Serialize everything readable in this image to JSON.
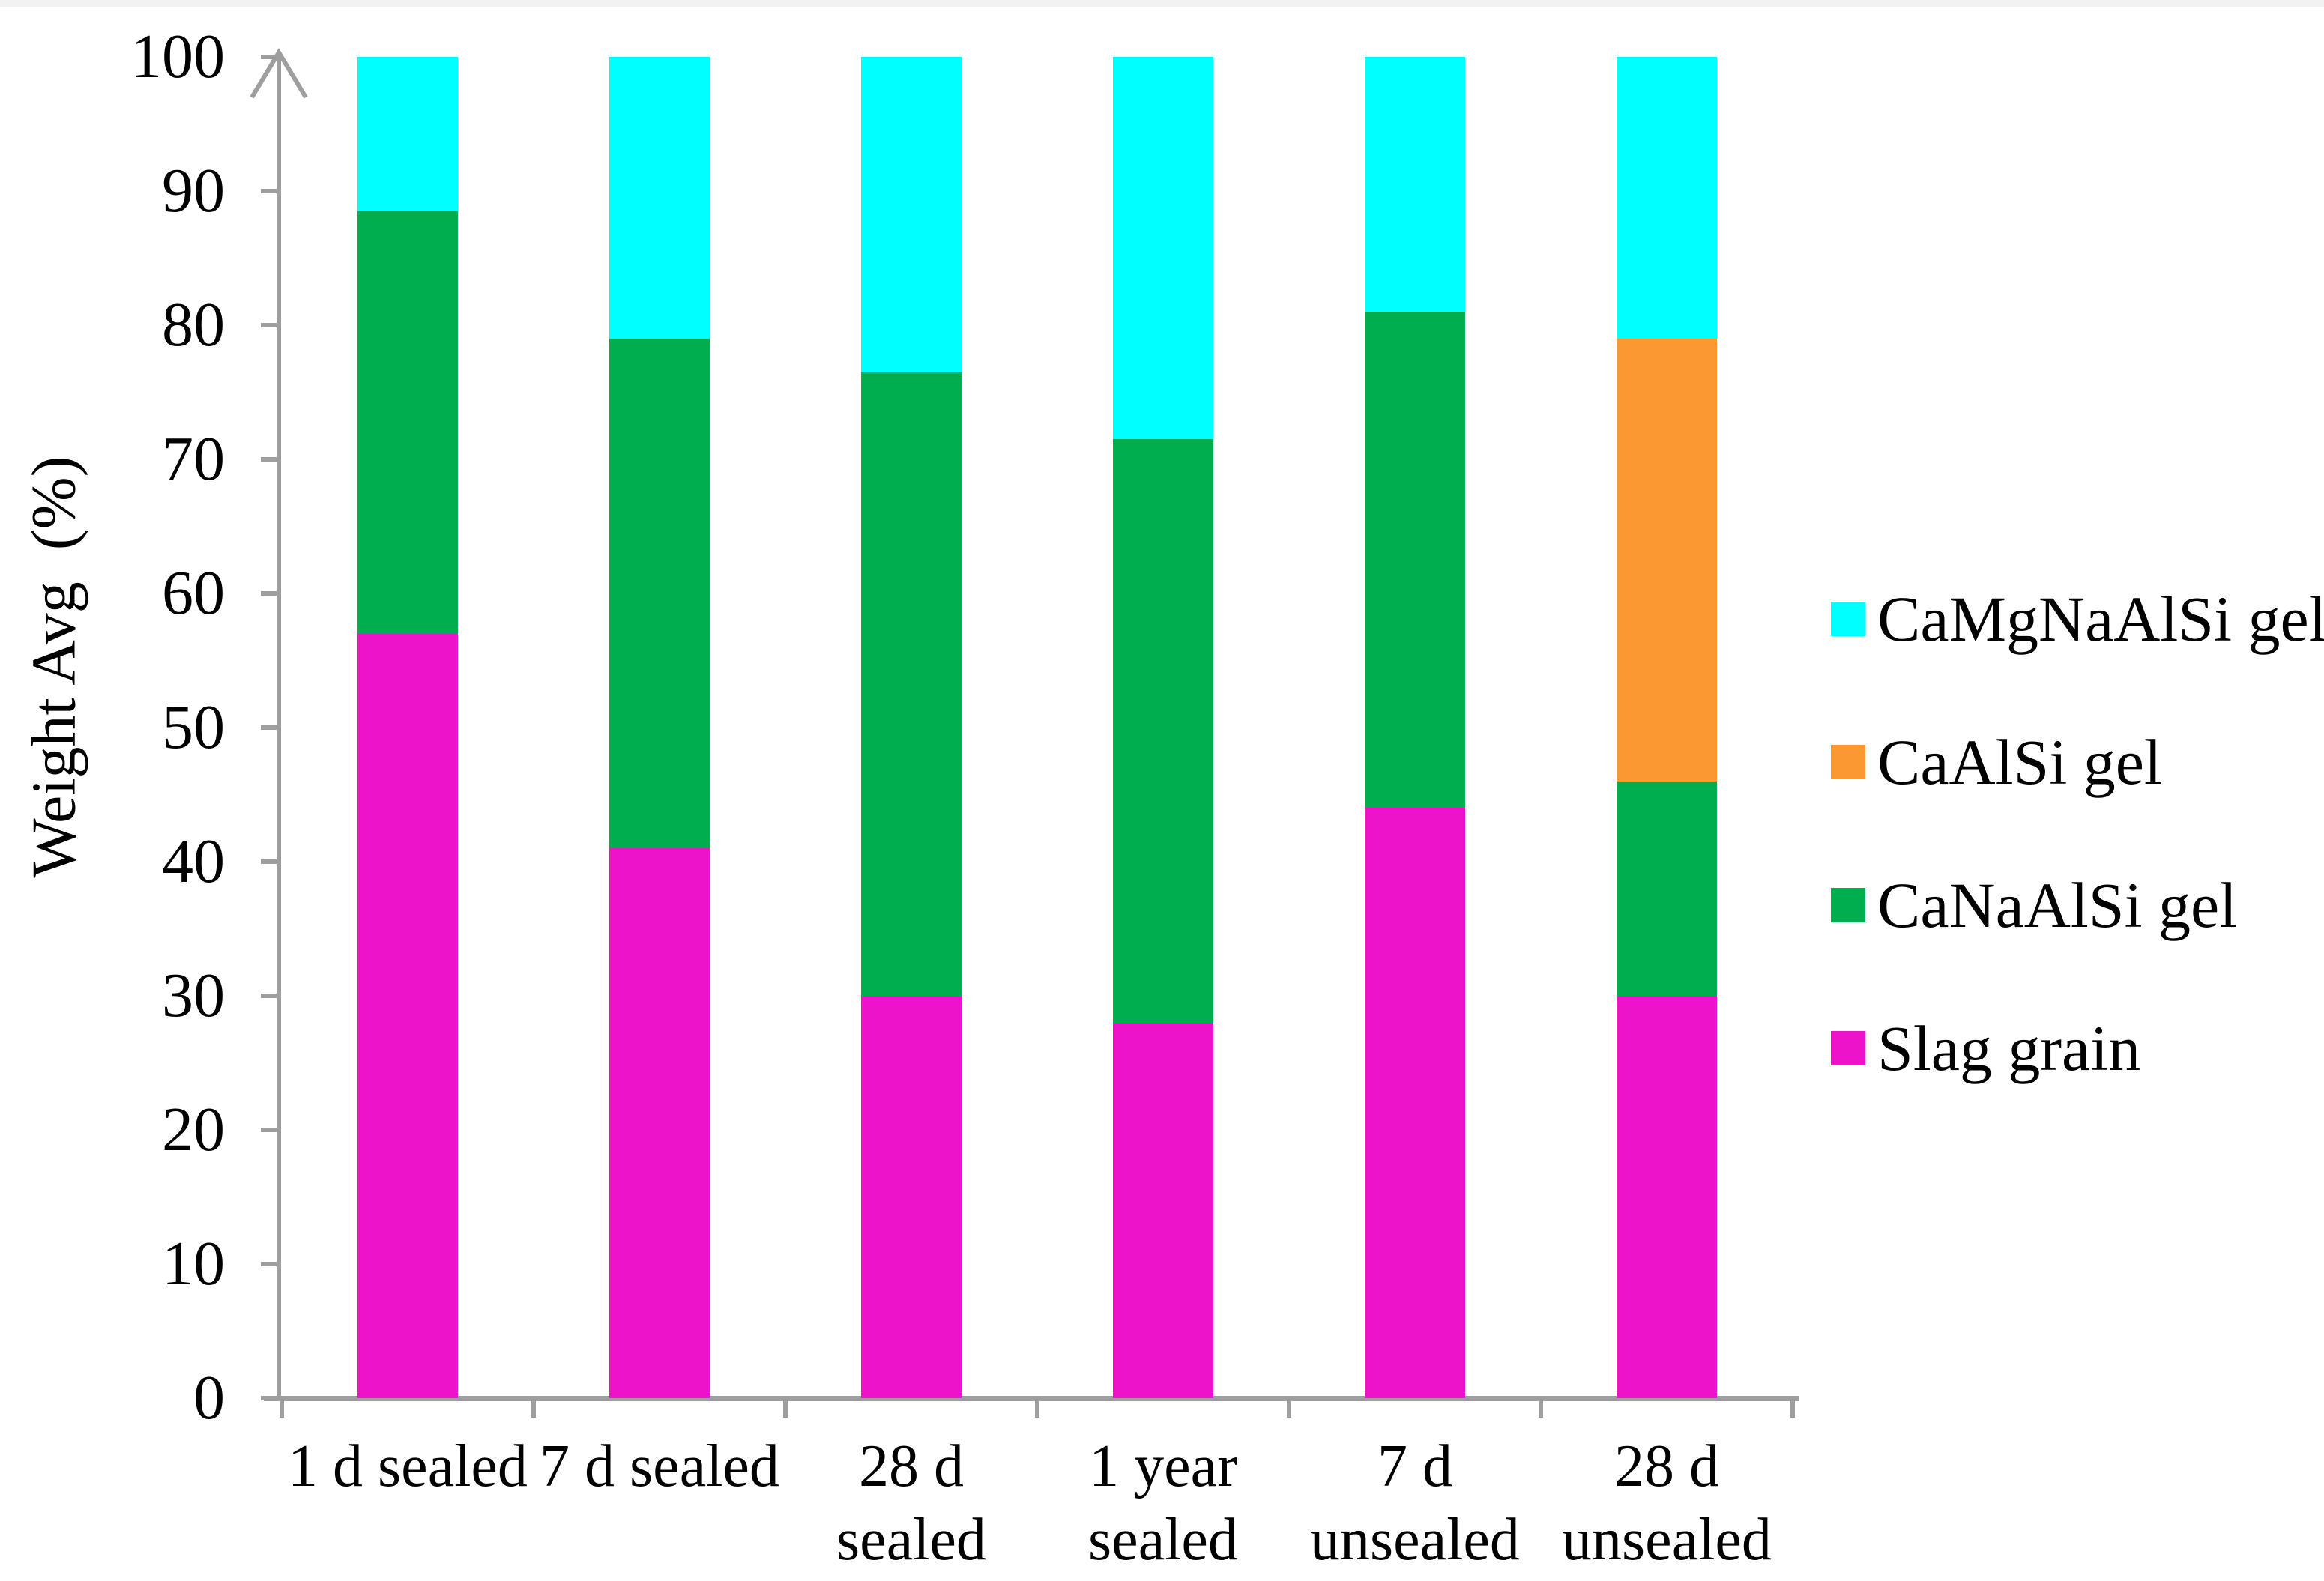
{
  "y_axis": {
    "title": "Weight Avg  (%)",
    "tick_values": [
      0,
      10,
      20,
      30,
      40,
      50,
      60,
      70,
      80,
      90,
      100
    ],
    "range": [
      0,
      100
    ]
  },
  "x_axis": {
    "category_labels": [
      [
        "1 d sealed"
      ],
      [
        "7 d sealed"
      ],
      [
        "28 d",
        "sealed"
      ],
      [
        "1 year",
        "sealed"
      ],
      [
        "7 d",
        "unsealed"
      ],
      [
        "28 d",
        "unsealed"
      ]
    ]
  },
  "legend": {
    "order": [
      "CaMgNaAlSi gel",
      "CaAlSi gel",
      "CaNaAlSi gel",
      "Slag grain"
    ]
  },
  "colors": {
    "CaMgNaAlSi gel": "#00ffff",
    "CaAlSi gel": "#fc9832",
    "CaNaAlSi gel": "#00ad4f",
    "Slag grain": "#ec13cb",
    "axis": "#9e9e9e",
    "text": "#000000"
  },
  "chart_data": {
    "type": "bar",
    "stacked": true,
    "title": "",
    "xlabel": "",
    "ylabel": "Weight Avg (%)",
    "ylim": [
      0,
      100
    ],
    "grid": false,
    "legend_position": "right",
    "categories": [
      "1 d sealed",
      "7 d sealed",
      "28 d sealed",
      "1 year sealed",
      "7 d unsealed",
      "28 d unsealed"
    ],
    "series": [
      {
        "name": "Slag grain",
        "values": [
          57,
          41,
          30,
          28,
          44,
          30
        ]
      },
      {
        "name": "CaNaAlSi gel",
        "values": [
          31.5,
          38,
          46.5,
          43.5,
          37,
          16
        ]
      },
      {
        "name": "CaAlSi gel",
        "values": [
          0,
          0,
          0,
          0,
          0,
          33
        ]
      },
      {
        "name": "CaMgNaAlSi gel",
        "values": [
          11.5,
          21,
          23.5,
          28.5,
          19,
          21
        ]
      }
    ]
  }
}
